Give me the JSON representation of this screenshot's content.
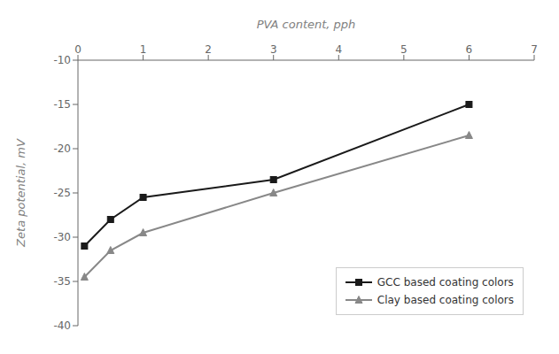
{
  "chart_data": {
    "type": "line",
    "xlabel": "PVA content, pph",
    "ylabel": "Zeta potential, mV",
    "x": [
      0.1,
      0.5,
      1.0,
      3.0,
      6.0
    ],
    "series": [
      {
        "name": "GCC based coating colors",
        "color": "#1a1a1a",
        "marker": "square",
        "values": [
          -31.0,
          -28.0,
          -25.5,
          -23.5,
          -15.0
        ]
      },
      {
        "name": "Clay based coating colors",
        "color": "#888888",
        "marker": "triangle",
        "values": [
          -34.5,
          -31.5,
          -29.5,
          -25.0,
          -18.5
        ]
      }
    ],
    "xlim": [
      0,
      7
    ],
    "xticks": [
      0,
      1,
      2,
      3,
      4,
      5,
      6,
      7
    ],
    "ylim": [
      -40,
      -10
    ],
    "yticks": [
      -40,
      -35,
      -30,
      -25,
      -20,
      -15,
      -10
    ],
    "grid": false,
    "legend": "lower right"
  }
}
